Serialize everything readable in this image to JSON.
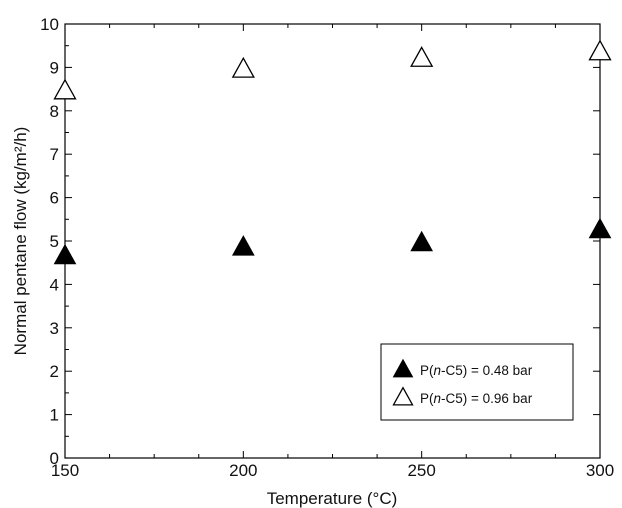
{
  "chart_data": {
    "type": "scatter",
    "title": "",
    "xlabel": "Temperature (°C)",
    "ylabel": "Normal pentane flow (kg/m²/h)",
    "xlim": [
      150,
      300
    ],
    "ylim": [
      0,
      10
    ],
    "x_ticks": [
      "150",
      "200",
      "250",
      "300"
    ],
    "y_ticks": [
      "0",
      "1",
      "2",
      "3",
      "4",
      "5",
      "6",
      "7",
      "8",
      "9",
      "10"
    ],
    "grid": false,
    "legend_position": "bottom-right",
    "series": [
      {
        "name_prefix": "P(",
        "name_italic": "n",
        "name_suffix": "-C5) = 0.48 bar",
        "marker": "filled-triangle",
        "color": "#000000",
        "points": [
          [
            150,
            4.65
          ],
          [
            200,
            4.85
          ],
          [
            250,
            4.95
          ],
          [
            300,
            5.25
          ]
        ]
      },
      {
        "name_prefix": "P(",
        "name_italic": "n",
        "name_suffix": "-C5) = 0.96 bar",
        "marker": "open-triangle",
        "color": "#000000",
        "points": [
          [
            150,
            8.45
          ],
          [
            200,
            8.95
          ],
          [
            250,
            9.2
          ],
          [
            300,
            9.35
          ]
        ]
      }
    ]
  }
}
